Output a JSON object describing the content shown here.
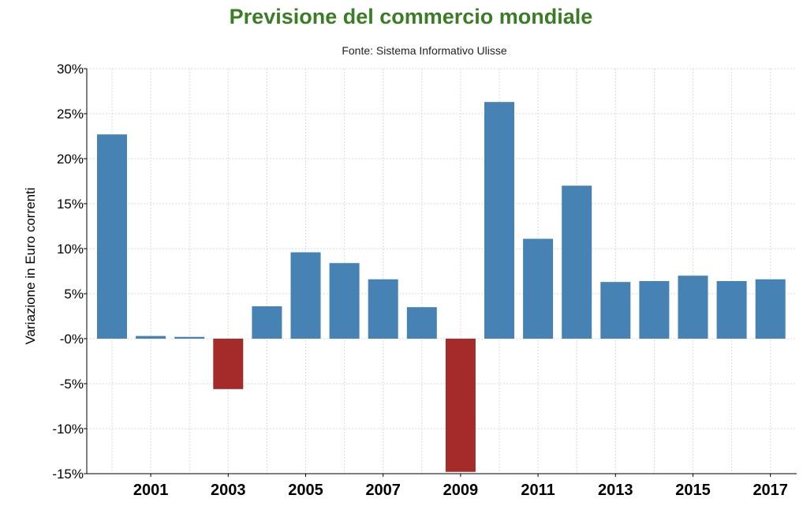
{
  "chart_data": {
    "type": "bar",
    "title": "Previsione del commercio mondiale",
    "subtitle": "Fonte: Sistema Informativo Ulisse",
    "ylabel": "Variazione in Euro correnti",
    "xlabel": "",
    "ylim": [
      -15,
      30
    ],
    "yticks": [
      30,
      25,
      20,
      15,
      10,
      5,
      0,
      -5,
      -10,
      -15
    ],
    "ytick_labels": [
      "30%",
      "25%",
      "20%",
      "15%",
      "10%",
      "5%",
      "-0%",
      "-5%",
      "-10%",
      "-15%"
    ],
    "grid": true,
    "categories": [
      "2000",
      "2001",
      "2002",
      "2003",
      "2004",
      "2005",
      "2006",
      "2007",
      "2008",
      "2009",
      "2010",
      "2011",
      "2012",
      "2013",
      "2014",
      "2015",
      "2016",
      "2017"
    ],
    "xtick_labels": [
      "2001",
      "2003",
      "2005",
      "2007",
      "2009",
      "2011",
      "2013",
      "2015",
      "2017"
    ],
    "values": [
      22.7,
      0.3,
      0.2,
      -5.6,
      3.6,
      9.6,
      8.4,
      6.6,
      3.5,
      -14.8,
      26.3,
      11.1,
      17.0,
      6.3,
      6.4,
      7.0,
      6.4,
      6.6
    ],
    "colors": {
      "positive": "#4682b4",
      "negative": "#a52a2a"
    }
  }
}
